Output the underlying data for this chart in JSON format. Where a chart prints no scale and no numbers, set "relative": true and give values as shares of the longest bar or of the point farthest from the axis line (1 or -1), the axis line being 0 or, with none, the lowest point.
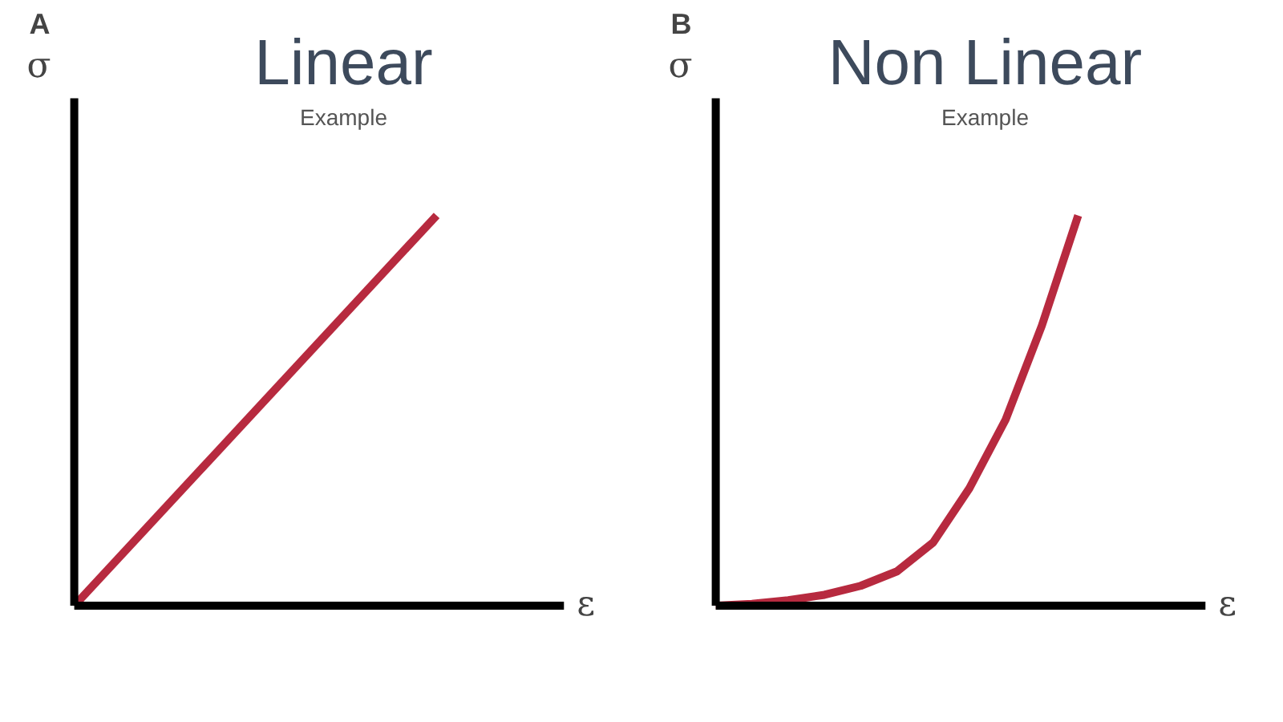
{
  "chart_data": [
    {
      "type": "line",
      "title": "Linear",
      "subtitle": "Example",
      "xlabel": "ε",
      "ylabel": "σ",
      "annotations": [
        "A"
      ],
      "relative": true,
      "categories": [
        null,
        null
      ],
      "series": [
        {
          "color": "#b72a3f",
          "values": [
            0,
            1
          ]
        }
      ]
    },
    {
      "type": "line",
      "title": "Non Linear",
      "subtitle": "Example",
      "xlabel": "ε",
      "ylabel": "σ",
      "annotations": [
        "B"
      ],
      "relative": true,
      "categories": [
        null,
        null,
        null,
        null,
        null,
        null,
        null,
        null,
        null,
        null,
        null
      ],
      "series": [
        {
          "color": "#b72a3f",
          "values": [
            0,
            0.005,
            0.014,
            0.028,
            0.051,
            0.088,
            0.162,
            0.301,
            0.477,
            0.718,
            1
          ]
        }
      ]
    }
  ]
}
